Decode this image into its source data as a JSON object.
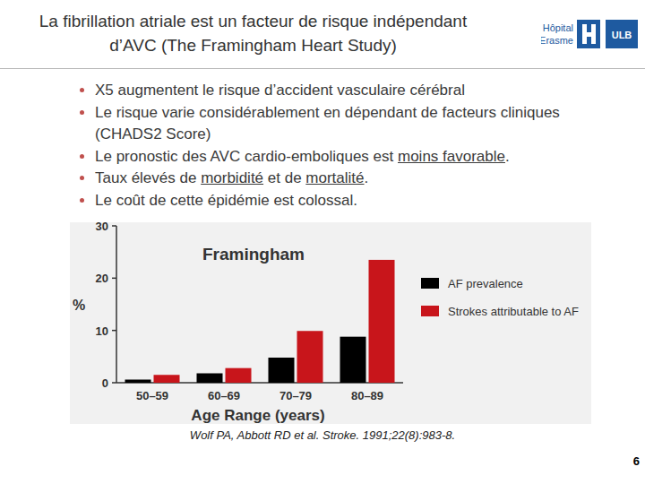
{
  "header": {
    "title": [
      "La fibrillation atriale est un facteur de risque indépendant",
      "d’AVC  (The Framingham Heart Study)"
    ],
    "logo": {
      "line1": "Hôpital",
      "line2": "Erasme",
      "badge": "ULB"
    }
  },
  "bullets": [
    [
      {
        "text": "X5 augmentent le risque d’accident vasculaire cérébral"
      }
    ],
    [
      {
        "text": "Le risque varie considérablement en dépendant de facteurs cliniques (CHADS2 Score)"
      }
    ],
    [
      {
        "text": "Le pronostic des AVC cardio-emboliques est "
      },
      {
        "text": "moins favorable",
        "underline": true
      },
      {
        "text": "."
      }
    ],
    [
      {
        "text": "Taux élevés de "
      },
      {
        "text": "morbidité",
        "underline": true
      },
      {
        "text": " et de "
      },
      {
        "text": "mortalité",
        "underline": true
      },
      {
        "text": "."
      }
    ],
    [
      {
        "text": "Le coût de cette épidémie est colossal."
      }
    ]
  ],
  "chart_data": {
    "type": "bar",
    "title": "Framingham",
    "y_label": "%",
    "x_label": "Age Range (years)",
    "categories": [
      "50–59",
      "60–69",
      "70–79",
      "80–89"
    ],
    "series": [
      {
        "name": "AF prevalence",
        "color": "#000000",
        "values": [
          0.6,
          1.8,
          4.8,
          8.8
        ]
      },
      {
        "name": "Strokes attributable to AF",
        "color": "#c8151b",
        "values": [
          1.5,
          2.8,
          9.9,
          23.5
        ]
      }
    ],
    "ylim": [
      0,
      30
    ],
    "yticks": [
      0,
      10,
      20,
      30
    ],
    "grid": false,
    "legend": "right"
  },
  "citation": "Wolf PA, Abbott RD et al. Stroke. 1991;22(8):983-8.",
  "page_number": 6
}
